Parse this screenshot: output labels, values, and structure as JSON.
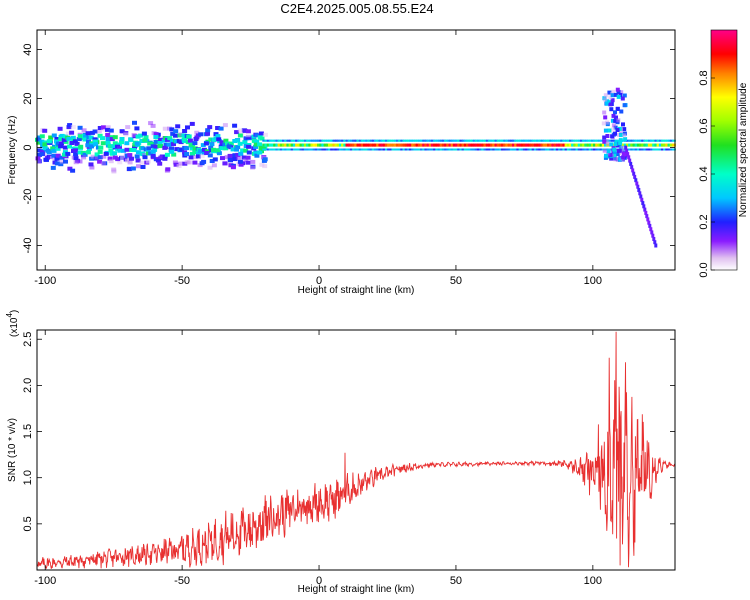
{
  "title": "C2E4.2025.005.08.55.E24",
  "colors": {
    "snr_line": "#e83030",
    "spectro_background": "#ffffff",
    "axis": "#000000"
  },
  "chart_data": [
    {
      "type": "heatmap",
      "xlabel": "Height of straight line (km)",
      "ylabel": "Frequency (Hz)",
      "xlim": [
        -103,
        130
      ],
      "ylim": [
        -50,
        48
      ],
      "xticks": [
        -100,
        -50,
        0,
        50,
        100
      ],
      "yticks": [
        -40,
        -20,
        0,
        20,
        40
      ],
      "colorbar": {
        "label": "Normalized spectral amplitude",
        "range": [
          0,
          1
        ],
        "ticks": [
          0.0,
          0.2,
          0.4,
          0.6,
          0.8
        ],
        "colormap": "gist_ncar-like rainbow (white→purple→blue→cyan→green→yellow→red→magenta)"
      },
      "features": [
        {
          "name": "broadband low-height noise",
          "x_range": [
            -103,
            -20
          ],
          "freq_range": [
            -10,
            12
          ],
          "amplitude": 0.25
        },
        {
          "name": "main signal band",
          "x_range": [
            -20,
            130
          ],
          "freq_center": 1,
          "amplitude": 0.7
        },
        {
          "name": "strong band segment",
          "x_range": [
            10,
            90
          ],
          "freq_center": 1,
          "amplitude": 0.8
        },
        {
          "name": "high-height scatter",
          "x_range": [
            104,
            112
          ],
          "freq_range": [
            -5,
            24
          ],
          "amplitude": 0.3
        },
        {
          "name": "descending trace",
          "x_from": 112,
          "freq_from": 0,
          "x_to": 123,
          "freq_to": -40,
          "amplitude": 0.12
        }
      ]
    },
    {
      "type": "line",
      "xlabel": "Height of straight line (km)",
      "ylabel": "SNR (10 * v/v)",
      "y_multiplier": "(x10",
      "y_multiplier_exp": "4",
      "xlim": [
        -103,
        130
      ],
      "ylim": [
        0,
        2.6
      ],
      "xticks": [
        -100,
        -50,
        0,
        50,
        100
      ],
      "yticks": [
        0.5,
        1.0,
        1.5,
        2.0,
        2.5
      ],
      "envelope": [
        {
          "x": -103,
          "y": 0.06,
          "amp": 0.05
        },
        {
          "x": -80,
          "y": 0.12,
          "amp": 0.07
        },
        {
          "x": -60,
          "y": 0.18,
          "amp": 0.1
        },
        {
          "x": -45,
          "y": 0.25,
          "amp": 0.15
        },
        {
          "x": -35,
          "y": 0.35,
          "amp": 0.2
        },
        {
          "x": -25,
          "y": 0.45,
          "amp": 0.22
        },
        {
          "x": -15,
          "y": 0.6,
          "amp": 0.2
        },
        {
          "x": -5,
          "y": 0.7,
          "amp": 0.15
        },
        {
          "x": 5,
          "y": 0.75,
          "amp": 0.18
        },
        {
          "x": 10,
          "y": 0.85,
          "amp": 0.15
        },
        {
          "x": 20,
          "y": 1.0,
          "amp": 0.08
        },
        {
          "x": 30,
          "y": 1.1,
          "amp": 0.04
        },
        {
          "x": 40,
          "y": 1.14,
          "amp": 0.02
        },
        {
          "x": 60,
          "y": 1.15,
          "amp": 0.015
        },
        {
          "x": 80,
          "y": 1.16,
          "amp": 0.015
        },
        {
          "x": 90,
          "y": 1.15,
          "amp": 0.03
        },
        {
          "x": 95,
          "y": 1.1,
          "amp": 0.08
        },
        {
          "x": 100,
          "y": 1.05,
          "amp": 0.25
        },
        {
          "x": 104,
          "y": 1.1,
          "amp": 0.45
        },
        {
          "x": 108,
          "y": 1.2,
          "amp": 0.75
        },
        {
          "x": 112,
          "y": 1.0,
          "amp": 0.75
        },
        {
          "x": 116,
          "y": 1.05,
          "amp": 0.55
        },
        {
          "x": 120,
          "y": 1.12,
          "amp": 0.35
        },
        {
          "x": 123,
          "y": 1.14,
          "amp": 0.15
        },
        {
          "x": 126,
          "y": 1.14,
          "amp": 0.03
        },
        {
          "x": 130,
          "y": 1.13,
          "amp": 0.02
        }
      ],
      "spikes": [
        {
          "x": 9.5,
          "y": 1.27
        },
        {
          "x": 108.5,
          "y": 2.58
        },
        {
          "x": 106,
          "y": 2.3
        },
        {
          "x": 112,
          "y": 2.25
        },
        {
          "x": 110,
          "y": 0.05
        },
        {
          "x": 113,
          "y": 0.03
        }
      ]
    }
  ]
}
